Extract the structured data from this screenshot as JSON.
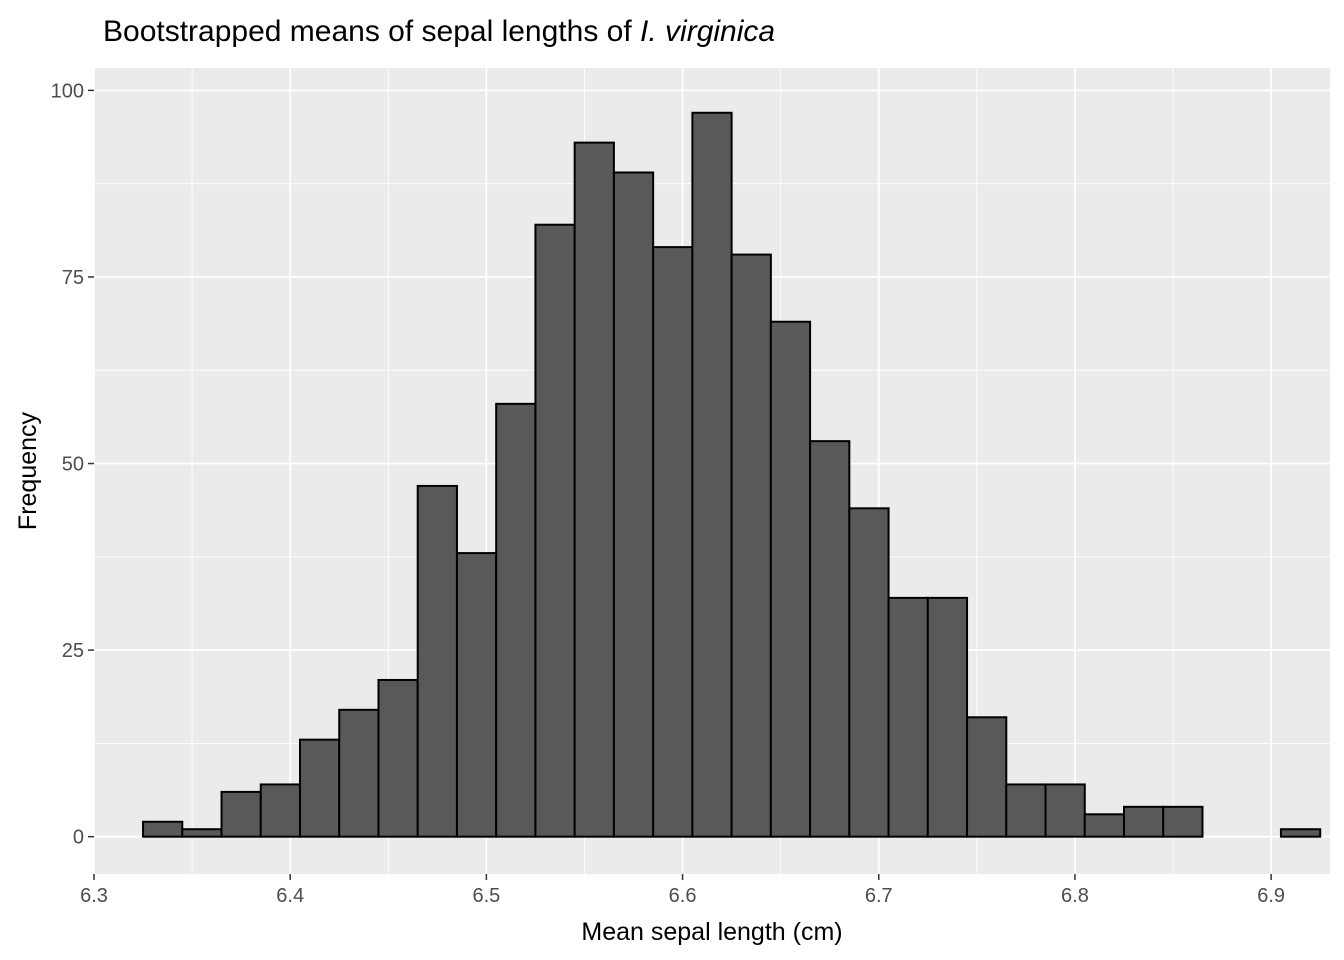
{
  "chart_data": {
    "type": "bar",
    "title": "Bootstrapped means of sepal lengths of",
    "title_species": "I. virginica",
    "xlabel": "Mean sepal length (cm)",
    "ylabel": "Frequency",
    "xlim": [
      6.3,
      6.93
    ],
    "ylim": [
      -5,
      103
    ],
    "x_ticks": [
      "6.3",
      "6.4",
      "6.5",
      "6.6",
      "6.7",
      "6.8",
      "6.9"
    ],
    "y_ticks": [
      "0",
      "25",
      "50",
      "75",
      "100"
    ],
    "bin_width": 0.02,
    "bin_starts": [
      6.325,
      6.345,
      6.365,
      6.385,
      6.405,
      6.425,
      6.445,
      6.465,
      6.485,
      6.505,
      6.525,
      6.545,
      6.565,
      6.585,
      6.605,
      6.625,
      6.645,
      6.665,
      6.685,
      6.705,
      6.725,
      6.745,
      6.765,
      6.785,
      6.805,
      6.825,
      6.845,
      6.865,
      6.885,
      6.905
    ],
    "values": [
      2,
      1,
      6,
      7,
      13,
      17,
      21,
      47,
      38,
      58,
      82,
      93,
      89,
      79,
      97,
      78,
      69,
      53,
      44,
      32,
      32,
      16,
      7,
      7,
      3,
      4,
      4,
      0,
      0,
      1
    ],
    "grid": true,
    "colors": {
      "bar_fill": "#595959",
      "bar_stroke": "#000000",
      "panel_background": "#ebebeb",
      "grid_line": "#ffffff",
      "tick_text": "#4d4d4d"
    }
  }
}
